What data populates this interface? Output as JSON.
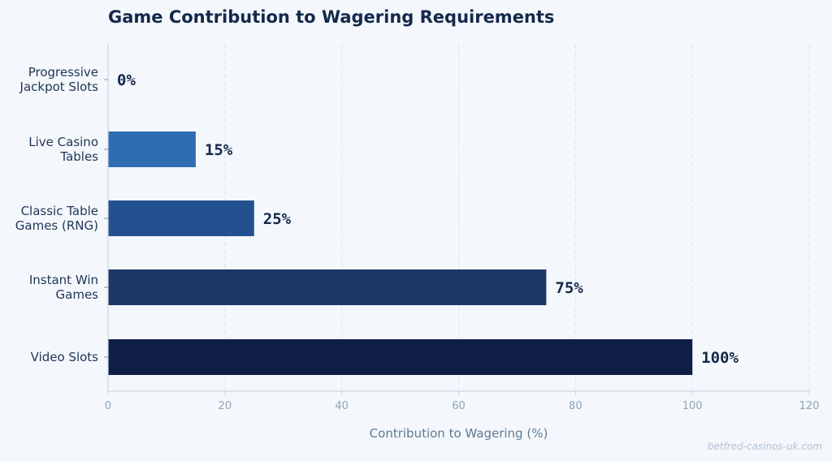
{
  "title": "Game Contribution to Wagering Requirements",
  "watermark": "betfred-casinos-uk.com",
  "colors": {
    "background": "#f4f7fb",
    "title": "#13294b",
    "axis": "#c9d6e3",
    "grid": "#dbe4ee",
    "tick_text": "#8fa4b8",
    "xlabel_text": "#607a92",
    "category_text": "#1e3556",
    "value_text": "#13294b",
    "bars": [
      "#2e6db1",
      "#2e6db1",
      "#23518f",
      "#1c3866",
      "#0e1e45"
    ]
  },
  "chart_data": {
    "type": "bar",
    "orientation": "horizontal",
    "title": "Game Contribution to Wagering Requirements",
    "xlabel": "Contribution to Wagering (%)",
    "ylabel": "",
    "xlim": [
      0,
      120
    ],
    "xticks": [
      0,
      20,
      40,
      60,
      80,
      100,
      120
    ],
    "grid": true,
    "value_suffix": "%",
    "categories": [
      [
        "Progressive",
        "Jackpot Slots"
      ],
      [
        "Live Casino",
        "Tables"
      ],
      [
        "Classic Table",
        "Games (RNG)"
      ],
      [
        "Instant Win",
        "Games"
      ],
      [
        "Video Slots"
      ]
    ],
    "values": [
      0,
      15,
      25,
      75,
      100
    ],
    "value_labels": [
      "0%",
      "15%",
      "25%",
      "75%",
      "100%"
    ]
  }
}
